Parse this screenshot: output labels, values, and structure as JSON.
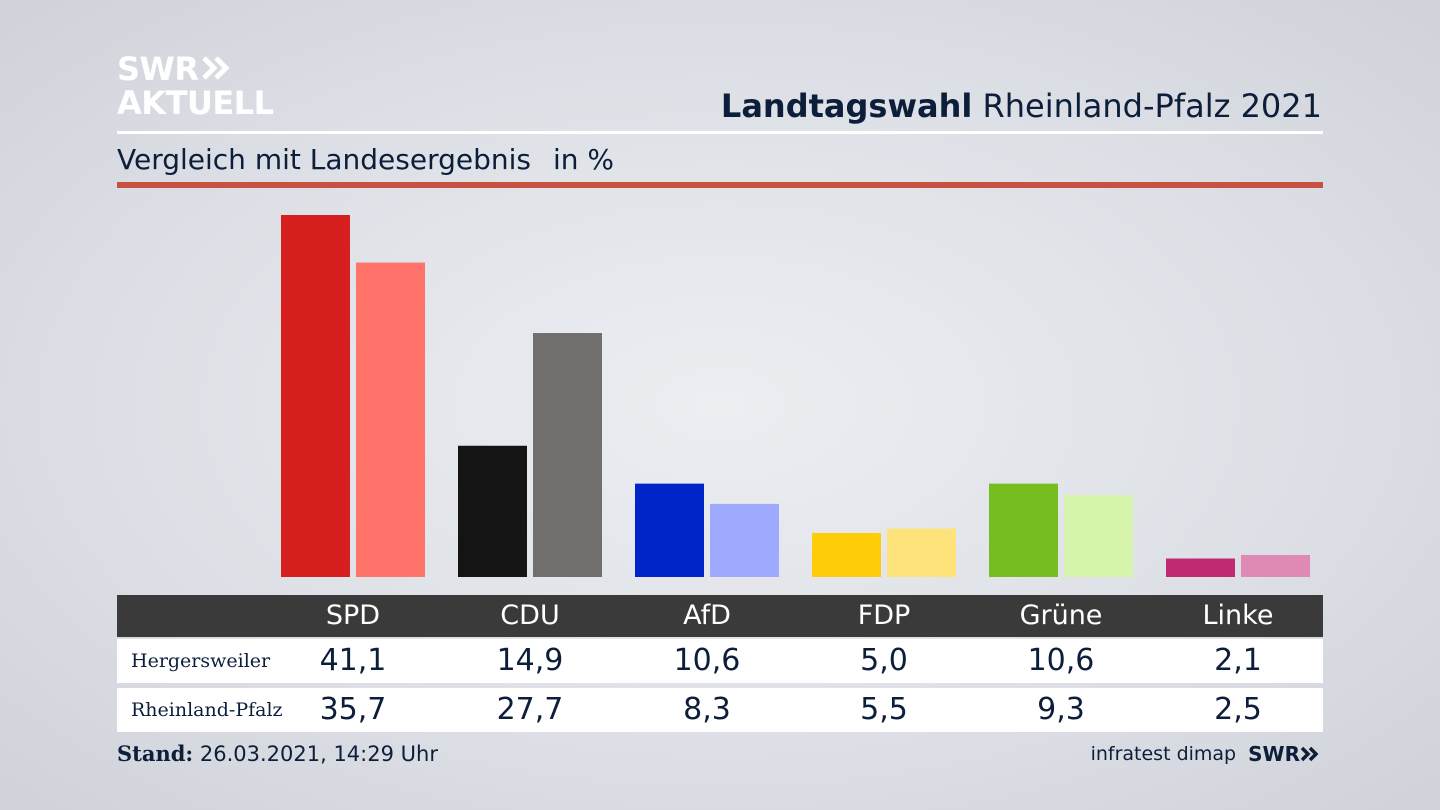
{
  "logo": {
    "line1": "SWR",
    "line2": "AKTUELL"
  },
  "header": {
    "title_bold": "Landtagswahl",
    "title_rest": " Rheinland-Pfalz 2021"
  },
  "subheader": {
    "text": "Vergleich mit Landesergebnis",
    "unit": "in %"
  },
  "footer": {
    "stand_label": "Stand:",
    "stand_value": " 26.03.2021, 14:29 Uhr",
    "source": "infratest dimap",
    "brand": "SWR"
  },
  "colors": {
    "local": [
      "#d62020",
      "#141414",
      "#0024c8",
      "#ffcc0a",
      "#76bd21",
      "#c02a73"
    ],
    "state": [
      "#ff736b",
      "#706f6d",
      "#9eaafe",
      "#fee27a",
      "#d7f4ad",
      "#de8ab5"
    ],
    "accent_rule": "#c8523f"
  },
  "chart_data": {
    "type": "bar",
    "categories": [
      "SPD",
      "CDU",
      "AfD",
      "FDP",
      "Grüne",
      "Linke"
    ],
    "series": [
      {
        "name": "Hergersweiler",
        "values": [
          41.1,
          14.9,
          10.6,
          5.0,
          10.6,
          2.1
        ]
      },
      {
        "name": "Rheinland-Pfalz",
        "values": [
          35.7,
          27.7,
          8.3,
          5.5,
          9.3,
          2.5
        ]
      }
    ],
    "value_labels": [
      [
        "41,1",
        "14,9",
        "10,6",
        "5,0",
        "10,6",
        "2,1"
      ],
      [
        "35,7",
        "27,7",
        "8,3",
        "5,5",
        "9,3",
        "2,5"
      ]
    ],
    "title": "Landtagswahl Rheinland-Pfalz 2021",
    "subtitle": "Vergleich mit Landesergebnis",
    "ylabel": "in %",
    "ylim": [
      0,
      41.1
    ],
    "grid": false,
    "legend": "table-below"
  }
}
